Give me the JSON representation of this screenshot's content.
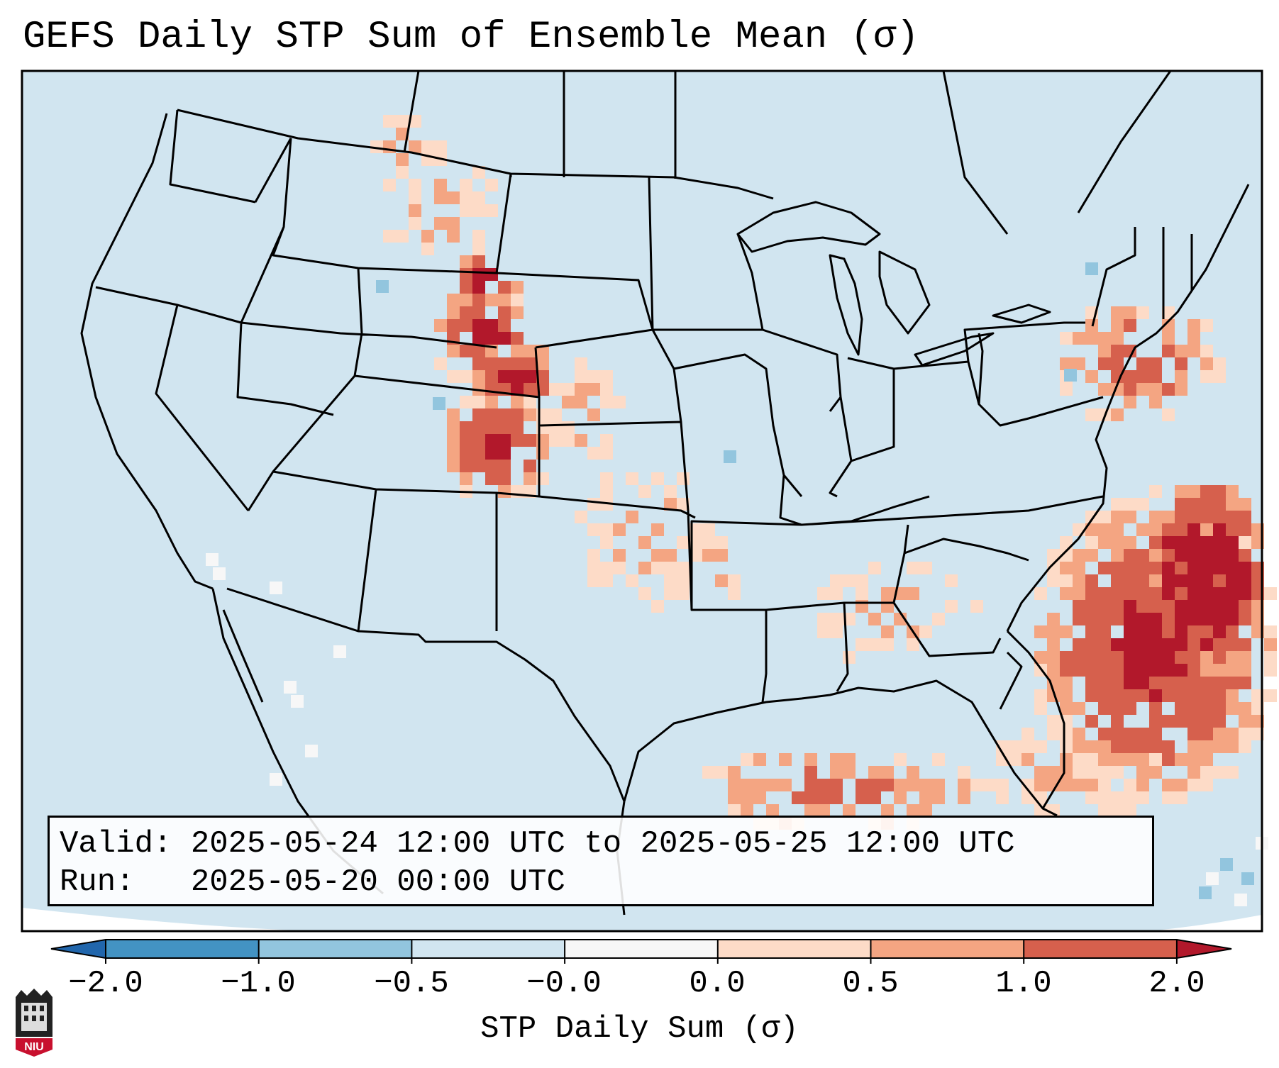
{
  "title": "GEFS Daily STP Sum of Ensemble Mean (σ)",
  "info": {
    "valid_label": "Valid:",
    "valid_value": "2025-05-24 12:00 UTC to 2025-05-25 12:00 UTC",
    "run_label": "Run:",
    "run_value": "2025-05-20 00:00 UTC"
  },
  "colorbar": {
    "label": "STP Daily Sum (σ)",
    "ticks": [
      "−2.0",
      "−1.0",
      "−0.5",
      "−0.0",
      "0.0",
      "0.5",
      "1.0",
      "2.0"
    ],
    "segments": [
      {
        "from": -2.0,
        "to": -1.0,
        "color": "#4393c3"
      },
      {
        "from": -1.0,
        "to": -0.5,
        "color": "#92c5de"
      },
      {
        "from": -0.5,
        "to": -0.0,
        "color": "#d1e5f0"
      },
      {
        "from": -0.0,
        "to": 0.0,
        "color": "#f7f7f7"
      },
      {
        "from": 0.0,
        "to": 0.5,
        "color": "#fddbc7"
      },
      {
        "from": 0.5,
        "to": 1.0,
        "color": "#f4a582"
      },
      {
        "from": 1.0,
        "to": 2.0,
        "color": "#d6604d"
      }
    ],
    "under_color": "#2166ac",
    "over_color": "#b2182b"
  },
  "colors": {
    "background": "#d1e5f0",
    "light_red": "#fddbc7",
    "salmon": "#f4a582",
    "red": "#d6604d",
    "dark_red": "#b2182b",
    "light_blue": "#92c5de",
    "white": "#f7f7f7"
  },
  "logo": {
    "text": "NIU"
  }
}
